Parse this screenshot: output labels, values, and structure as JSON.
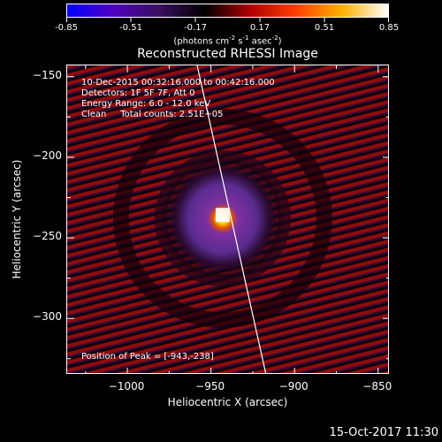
{
  "colorbar": {
    "ticks": [
      "-0.85",
      "-0.51",
      "-0.17",
      "0.17",
      "0.51",
      "0.85"
    ],
    "units_main": "(photons cm",
    "units_sup1": "-2",
    "units_mid1": " s",
    "units_sup2": "-1",
    "units_mid2": " asec",
    "units_sup3": "-2",
    "units_end": ")",
    "colors": [
      "#0000ff",
      "#5000c0",
      "#3a1060",
      "#000000",
      "#b00000",
      "#ff4000",
      "#ffb000",
      "#ffffff"
    ]
  },
  "image": {
    "title": "Reconstructed RHESSI Image",
    "info_lines": [
      "10-Dec-2015 00:32:16.000 to 00:42:16.000",
      "Detectors: 1F 5F 7F, Att 0",
      "Energy Range: 6.0 - 12.0 keV",
      "Clean     Total counts: 2.51E+05"
    ],
    "peak_text": "Position of Peak = [-943,-238]",
    "peak": [
      -943,
      -238
    ],
    "x_range": [
      -1036,
      -843
    ],
    "y_range": [
      -335,
      -143
    ]
  },
  "axes": {
    "xlabel": "Heliocentric X (arcsec)",
    "ylabel": "Heliocentric Y (arcsec)",
    "xticks": [
      "−1000",
      "−950",
      "−900",
      "−850"
    ],
    "xtick_values": [
      -1000,
      -950,
      -900,
      -850
    ],
    "yticks": [
      "−150",
      "−200",
      "−250",
      "−300"
    ],
    "ytick_values": [
      -150,
      -200,
      -250,
      -300
    ]
  },
  "footer": {
    "date": "15-Oct-2017 11:30"
  }
}
